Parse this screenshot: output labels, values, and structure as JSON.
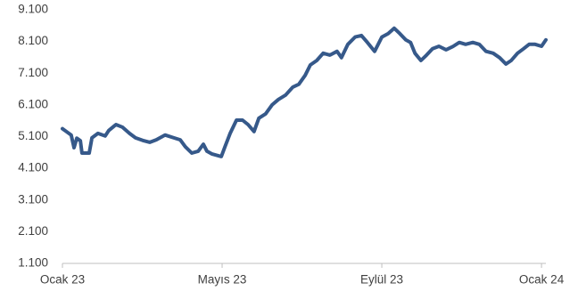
{
  "chart_data": {
    "type": "line",
    "x": [
      0,
      0.11,
      0.22,
      0.29,
      0.36,
      0.45,
      0.49,
      0.67,
      0.74,
      0.89,
      1.07,
      1.16,
      1.34,
      1.5,
      1.68,
      1.83,
      2.01,
      2.19,
      2.35,
      2.57,
      2.79,
      2.95,
      3.08,
      3.24,
      3.4,
      3.53,
      3.62,
      3.75,
      3.98,
      4.07,
      4.2,
      4.36,
      4.51,
      4.65,
      4.8,
      4.92,
      5.09,
      5.25,
      5.41,
      5.59,
      5.77,
      5.92,
      6.08,
      6.21,
      6.37,
      6.53,
      6.7,
      6.88,
      6.99,
      7.15,
      7.33,
      7.49,
      7.64,
      7.82,
      8.0,
      8.16,
      8.31,
      8.45,
      8.6,
      8.72,
      8.83,
      8.98,
      9.12,
      9.27,
      9.43,
      9.61,
      9.79,
      9.94,
      10.1,
      10.28,
      10.44,
      10.61,
      10.79,
      10.95,
      11.11,
      11.24,
      11.4,
      11.55,
      11.69,
      11.84,
      12.0,
      12.11
    ],
    "series": [
      {
        "color": "#36598a",
        "values": [
          5350,
          5250,
          5150,
          4750,
          5050,
          4970,
          4580,
          4580,
          5060,
          5200,
          5120,
          5290,
          5480,
          5400,
          5200,
          5060,
          4980,
          4920,
          5000,
          5150,
          5060,
          5000,
          4780,
          4580,
          4640,
          4860,
          4640,
          4550,
          4470,
          4780,
          5200,
          5620,
          5620,
          5480,
          5260,
          5680,
          5820,
          6100,
          6270,
          6410,
          6660,
          6750,
          7030,
          7360,
          7500,
          7730,
          7670,
          7790,
          7590,
          8010,
          8240,
          8290,
          8070,
          7790,
          8240,
          8350,
          8520,
          8350,
          8150,
          8070,
          7730,
          7500,
          7670,
          7870,
          7950,
          7840,
          7950,
          8070,
          8010,
          8070,
          8010,
          7790,
          7730,
          7590,
          7390,
          7500,
          7730,
          7870,
          8010,
          8010,
          7950,
          8150
        ]
      }
    ],
    "xlim": [
      0,
      12.11
    ],
    "xticks": [
      {
        "value": 0,
        "label": "Ocak 23"
      },
      {
        "value": 4,
        "label": "Mayıs 23"
      },
      {
        "value": 8,
        "label": "Eylül 23"
      },
      {
        "value": 12,
        "label": "Ocak 24"
      }
    ],
    "ylim": [
      1100,
      9100
    ],
    "yticks": [
      {
        "value": 1100,
        "label": "1.100"
      },
      {
        "value": 2100,
        "label": "2.100"
      },
      {
        "value": 3100,
        "label": "3.100"
      },
      {
        "value": 4100,
        "label": "4.100"
      },
      {
        "value": 5100,
        "label": "5.100"
      },
      {
        "value": 6100,
        "label": "6.100"
      },
      {
        "value": 7100,
        "label": "7.100"
      },
      {
        "value": 8100,
        "label": "8.100"
      },
      {
        "value": 9100,
        "label": "9.100"
      }
    ]
  }
}
